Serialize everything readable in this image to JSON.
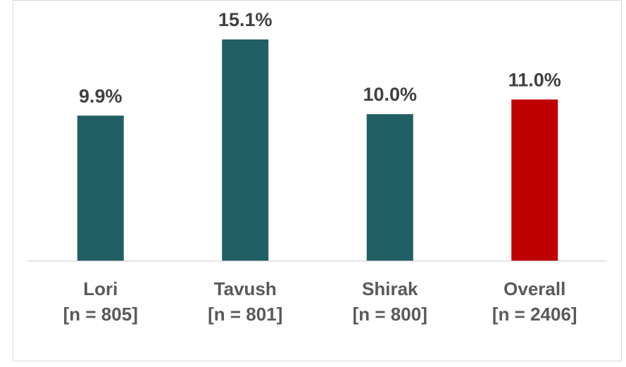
{
  "chart_data": {
    "type": "bar",
    "categories": [
      [
        "Lori",
        "[n = 805]"
      ],
      [
        "Tavush",
        "[n = 801]"
      ],
      [
        "Shirak",
        "[n = 800]"
      ],
      [
        "Overall",
        "[n = 2406]"
      ]
    ],
    "values": [
      9.9,
      15.1,
      10.0,
      11.0
    ],
    "value_labels": [
      "9.9%",
      "15.1%",
      "10.0%",
      "11.0%"
    ],
    "colors": [
      "#215f66",
      "#215f66",
      "#215f66",
      "#c00000"
    ]
  }
}
